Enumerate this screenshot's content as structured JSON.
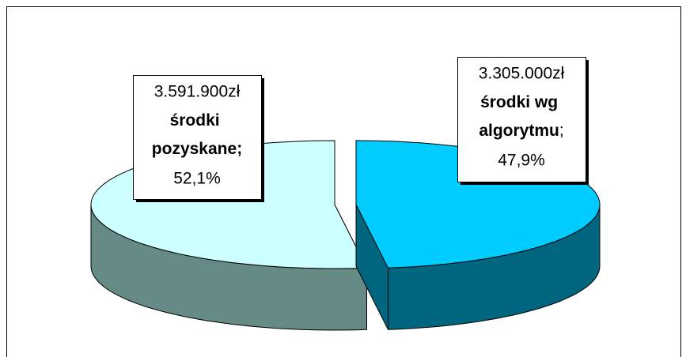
{
  "chart_data": {
    "type": "pie",
    "categories": [
      "środki pozyskane",
      "środki wg algorytmu"
    ],
    "values": [
      52.1,
      47.9
    ],
    "value_labels": [
      "52,1%",
      "47,9%"
    ],
    "amounts": [
      3591900,
      3305000
    ],
    "amount_labels": [
      "3.591.900zł",
      "3.305.000zł"
    ],
    "label_separator": ";",
    "colors": [
      "#ccffff",
      "#00ccff"
    ],
    "side_colors": [
      "#668a86",
      "#006680"
    ]
  }
}
